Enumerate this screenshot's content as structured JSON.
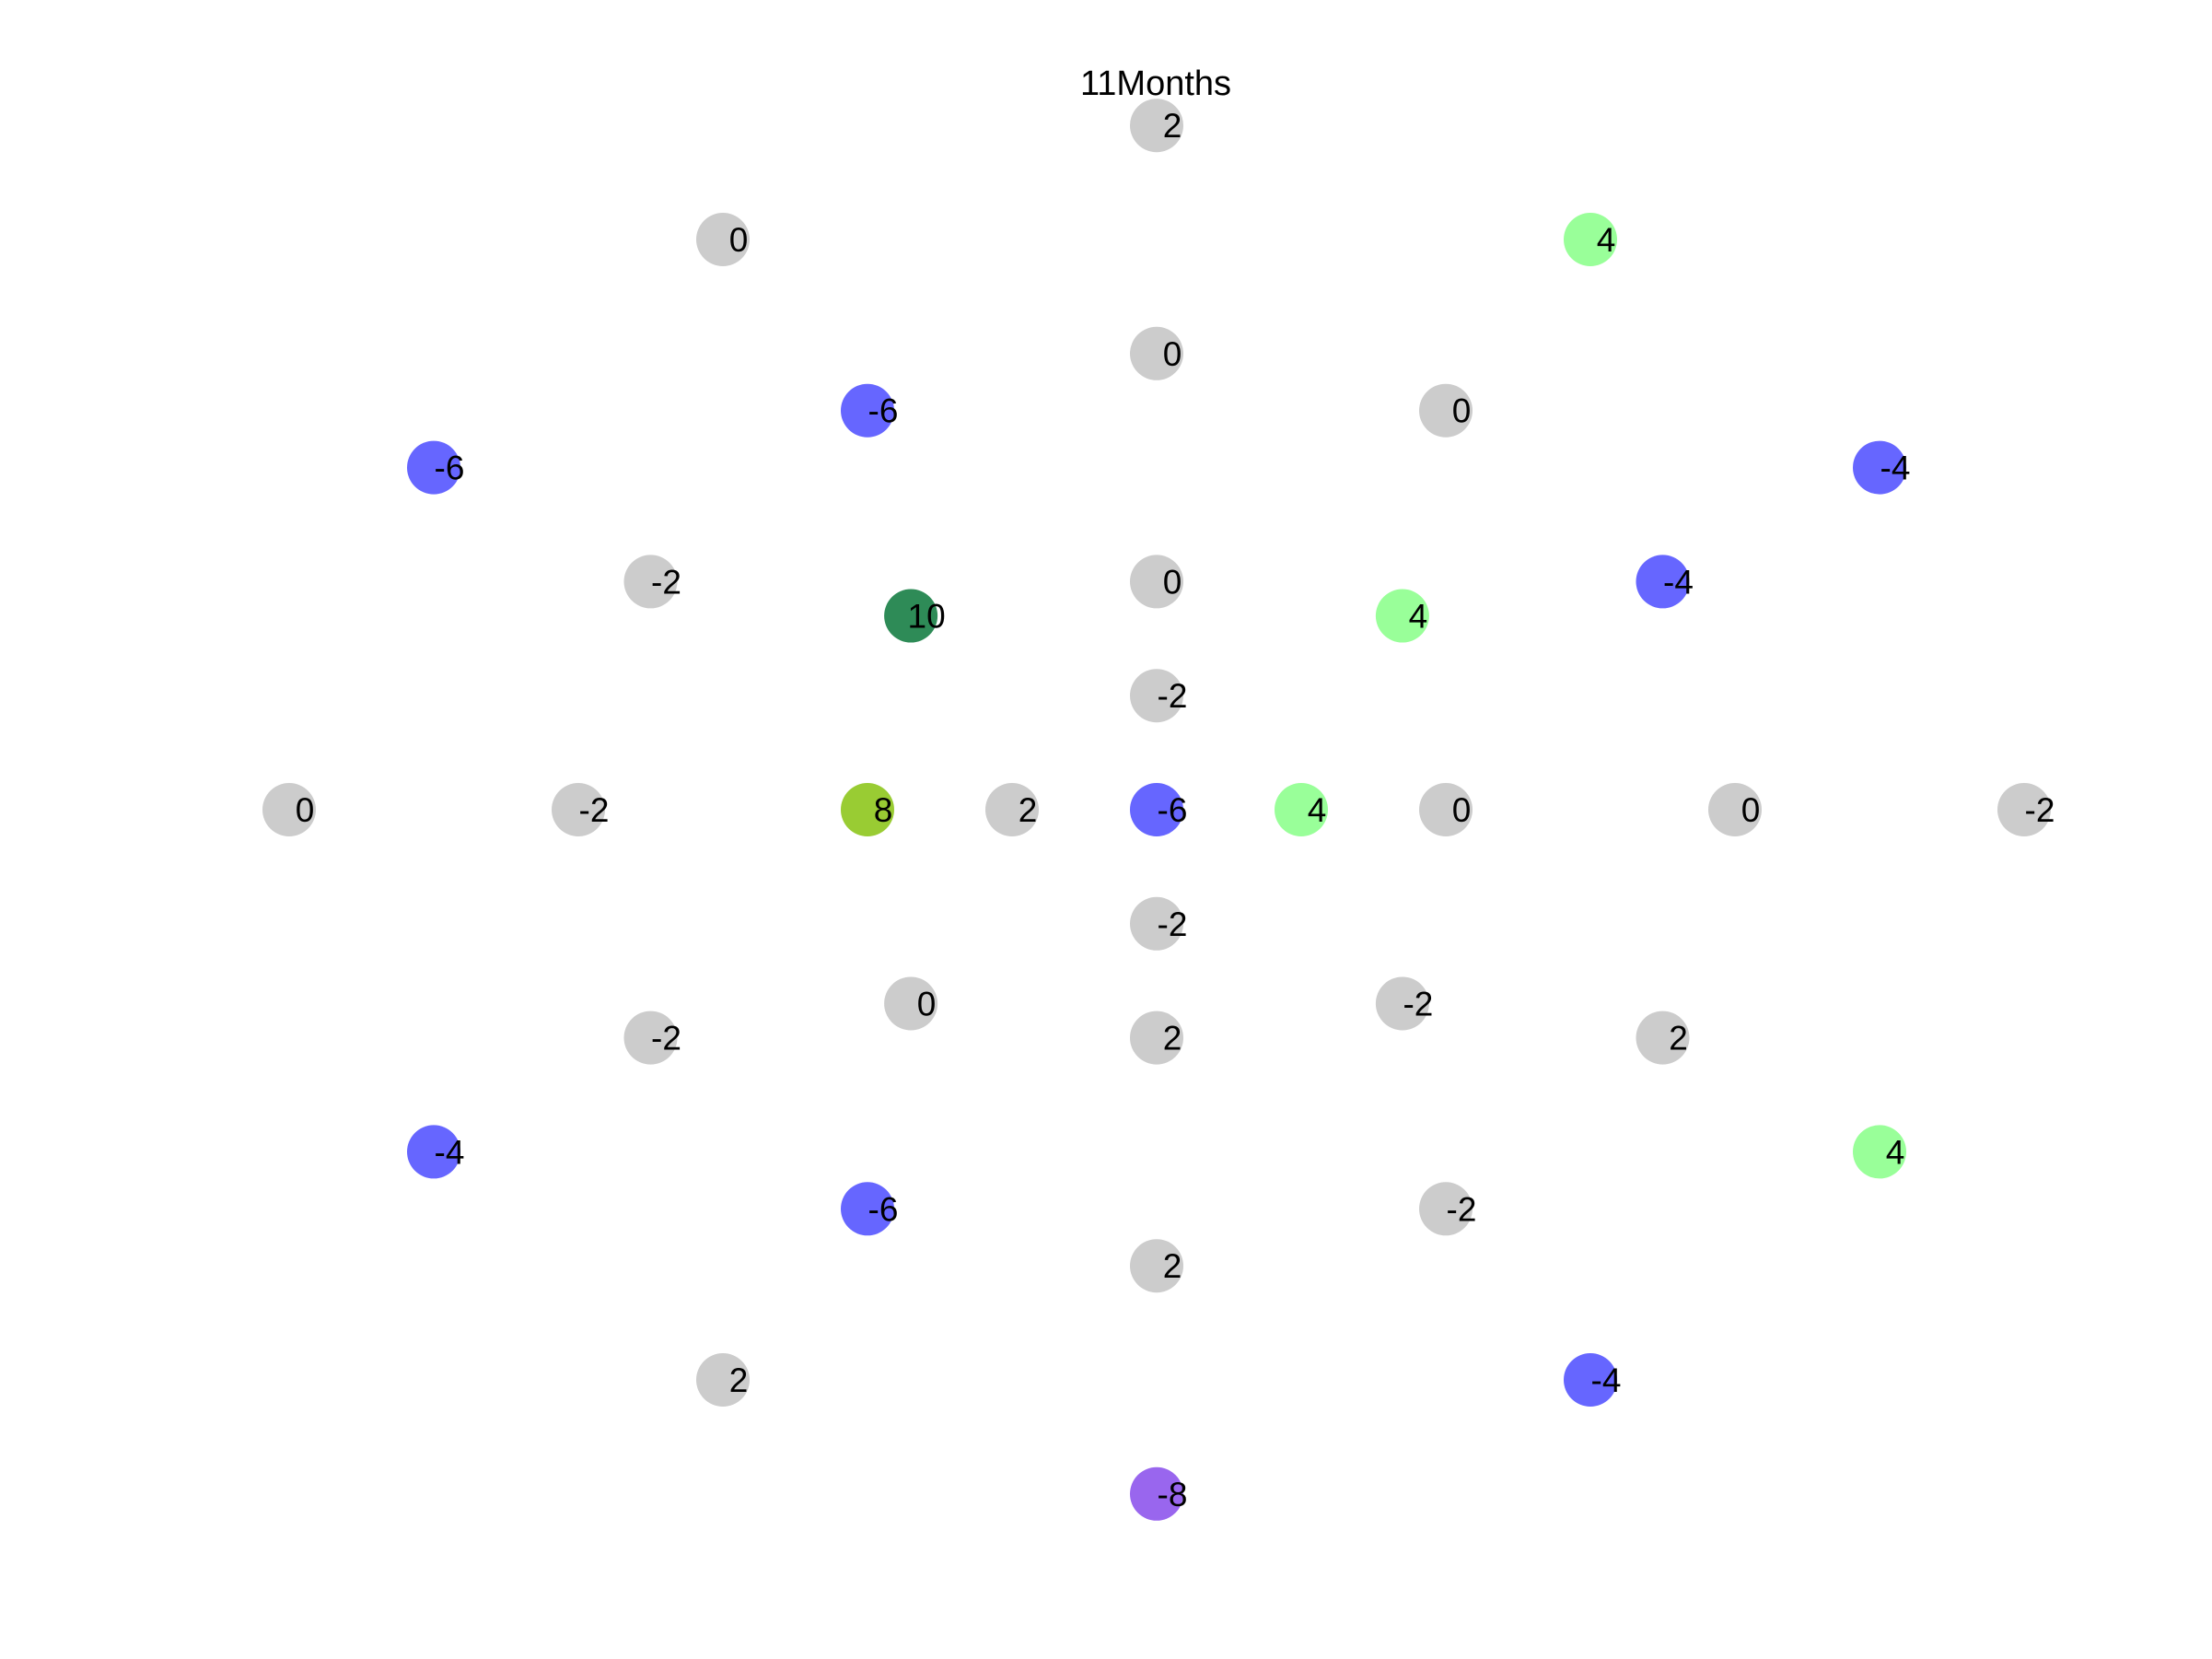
{
  "chart_data": {
    "type": "scatter",
    "title": "11Months",
    "xlabel": "",
    "ylabel": "",
    "grid": false,
    "legend": "none",
    "axes_visible": false,
    "colors": {
      "zero": "#cccccc",
      "neg_small": "#6666ff",
      "neg_large": "#9966ee",
      "pos_small": "#99ff99",
      "pos_mid": "#99cc33",
      "pos_large": "#2e8b57"
    },
    "points": [
      {
        "x": 0,
        "y": 12,
        "value": 2,
        "color": "#cccccc"
      },
      {
        "x": -6,
        "y": 10,
        "value": 0,
        "color": "#cccccc"
      },
      {
        "x": 6,
        "y": 10,
        "value": 4,
        "color": "#99ff99"
      },
      {
        "x": 0,
        "y": 8,
        "value": 0,
        "color": "#cccccc"
      },
      {
        "x": -4,
        "y": 7,
        "value": -6,
        "color": "#6666ff"
      },
      {
        "x": 4,
        "y": 7,
        "value": 0,
        "color": "#cccccc"
      },
      {
        "x": -10,
        "y": 6,
        "value": -6,
        "color": "#6666ff"
      },
      {
        "x": 10,
        "y": 6,
        "value": -4,
        "color": "#6666ff"
      },
      {
        "x": -7,
        "y": 4,
        "value": -2,
        "color": "#cccccc"
      },
      {
        "x": 0,
        "y": 4,
        "value": 0,
        "color": "#cccccc"
      },
      {
        "x": 7,
        "y": 4,
        "value": -4,
        "color": "#6666ff"
      },
      {
        "x": -3.4,
        "y": 3.4,
        "value": 10,
        "color": "#2e8b57"
      },
      {
        "x": 3.4,
        "y": 3.4,
        "value": 4,
        "color": "#99ff99"
      },
      {
        "x": 0,
        "y": 2,
        "value": -2,
        "color": "#cccccc"
      },
      {
        "x": -12,
        "y": 0,
        "value": 0,
        "color": "#cccccc"
      },
      {
        "x": -8,
        "y": 0,
        "value": -2,
        "color": "#cccccc"
      },
      {
        "x": -4,
        "y": 0,
        "value": 8,
        "color": "#99cc33"
      },
      {
        "x": -2,
        "y": 0,
        "value": 2,
        "color": "#cccccc"
      },
      {
        "x": 0,
        "y": 0,
        "value": -6,
        "color": "#6666ff"
      },
      {
        "x": 2,
        "y": 0,
        "value": 4,
        "color": "#99ff99"
      },
      {
        "x": 4,
        "y": 0,
        "value": 0,
        "color": "#cccccc"
      },
      {
        "x": 8,
        "y": 0,
        "value": 0,
        "color": "#cccccc"
      },
      {
        "x": 12,
        "y": 0,
        "value": -2,
        "color": "#cccccc"
      },
      {
        "x": 0,
        "y": -2,
        "value": -2,
        "color": "#cccccc"
      },
      {
        "x": -3.4,
        "y": -3.4,
        "value": 0,
        "color": "#cccccc"
      },
      {
        "x": 3.4,
        "y": -3.4,
        "value": -2,
        "color": "#cccccc"
      },
      {
        "x": -7,
        "y": -4,
        "value": -2,
        "color": "#cccccc"
      },
      {
        "x": 0,
        "y": -4,
        "value": 2,
        "color": "#cccccc"
      },
      {
        "x": 7,
        "y": -4,
        "value": 2,
        "color": "#cccccc"
      },
      {
        "x": -10,
        "y": -6,
        "value": -4,
        "color": "#6666ff"
      },
      {
        "x": 10,
        "y": -6,
        "value": 4,
        "color": "#99ff99"
      },
      {
        "x": -4,
        "y": -7,
        "value": -6,
        "color": "#6666ff"
      },
      {
        "x": 4,
        "y": -7,
        "value": -2,
        "color": "#cccccc"
      },
      {
        "x": 0,
        "y": -8,
        "value": 2,
        "color": "#cccccc"
      },
      {
        "x": -6,
        "y": -10,
        "value": 2,
        "color": "#cccccc"
      },
      {
        "x": 6,
        "y": -10,
        "value": -4,
        "color": "#6666ff"
      },
      {
        "x": 0,
        "y": -12,
        "value": -8,
        "color": "#9966ee"
      }
    ]
  }
}
